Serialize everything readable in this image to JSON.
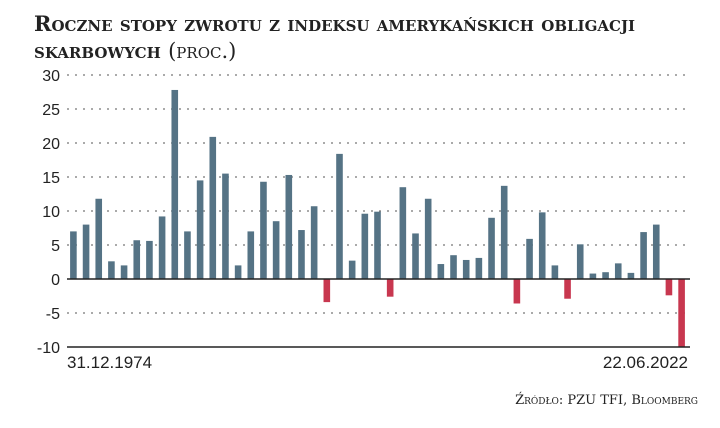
{
  "header": {
    "title": "Roczne stopy zwrotu z indeksu amerykańskich obligacji skarbowych",
    "unit": "(proc.)"
  },
  "source": "Źródło: PZU TFI, Bloomberg",
  "colors": {
    "positive": "#557385",
    "negative": "#c8374f",
    "grid": "#555555",
    "axis": "#222222"
  },
  "chart_data": {
    "type": "bar",
    "title": "Roczne stopy zwrotu z indeksu amerykańskich obligacji skarbowych (proc.)",
    "xlabel": "",
    "ylabel": "",
    "x_start_label": "31.12.1974",
    "x_end_label": "22.06.2022",
    "ylim": [
      -10,
      30
    ],
    "yticks": [
      30,
      25,
      20,
      15,
      10,
      5,
      0,
      -5,
      -10
    ],
    "grid": true,
    "values": [
      7.0,
      8.0,
      11.8,
      2.6,
      2.0,
      5.7,
      5.6,
      9.2,
      27.8,
      7.0,
      14.5,
      20.9,
      15.5,
      2.0,
      7.0,
      14.3,
      8.5,
      15.3,
      7.2,
      10.7,
      -3.4,
      18.4,
      2.7,
      9.6,
      9.9,
      -2.6,
      13.5,
      6.7,
      11.8,
      2.2,
      3.5,
      2.8,
      3.1,
      9.0,
      13.7,
      -3.6,
      5.9,
      9.8,
      2.0,
      -2.9,
      5.1,
      0.8,
      1.0,
      2.3,
      0.9,
      6.9,
      8.0,
      -2.4,
      -10.0
    ]
  }
}
